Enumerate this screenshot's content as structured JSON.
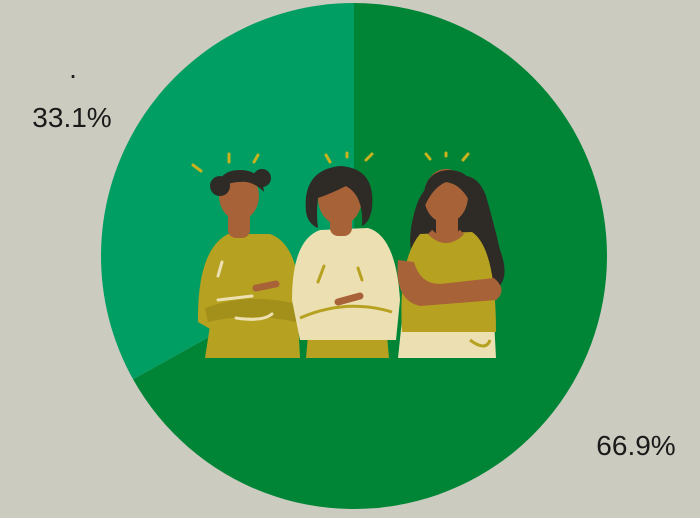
{
  "chart_data": {
    "type": "pie",
    "slices": [
      {
        "label": "",
        "value": 66.9,
        "display": "66.9%",
        "color": "#008537"
      },
      {
        "label": ".",
        "value": 33.1,
        "display": "33.1%",
        "color": "#009e63"
      }
    ],
    "start_angle_deg": 0,
    "direction": "clockwise",
    "title": "",
    "legend": "none"
  },
  "colors": {
    "background": "#cbcbbf",
    "skin": "#a86238",
    "hair": "#2e2a26",
    "mustard": "#b7a120",
    "cream": "#ece0b2"
  },
  "illustration": "three-women-arms-crossed"
}
